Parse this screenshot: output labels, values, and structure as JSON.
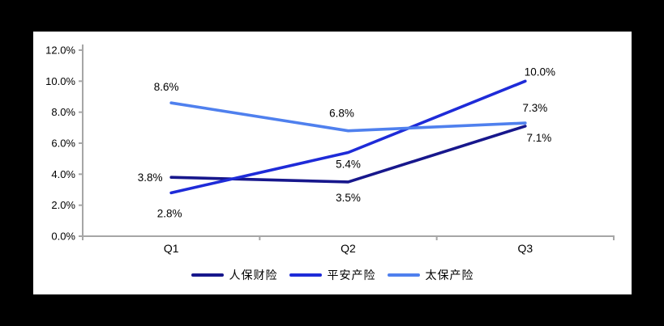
{
  "canvas": {
    "background": "#000000",
    "panel_background": "#FFFFFF"
  },
  "chart_data": {
    "type": "line",
    "title": "",
    "xlabel": "",
    "ylabel": "",
    "categories": [
      "Q1",
      "Q2",
      "Q3"
    ],
    "series": [
      {
        "name": "人保财险",
        "values": [
          3.8,
          3.5,
          7.1
        ],
        "labels": [
          "3.8%",
          "3.5%",
          "7.1%"
        ],
        "color": "#17178C",
        "label_offsets": [
          [
            -26,
            5
          ],
          [
            0,
            24
          ],
          [
            17,
            19
          ]
        ]
      },
      {
        "name": "平安产险",
        "values": [
          2.8,
          5.4,
          10.0
        ],
        "labels": [
          "2.8%",
          "5.4%",
          "10.0%"
        ],
        "color": "#1E2BD8",
        "label_offsets": [
          [
            -2,
            30
          ],
          [
            0,
            19
          ],
          [
            18,
            -7
          ]
        ]
      },
      {
        "name": "太保产险",
        "values": [
          8.6,
          6.8,
          7.3
        ],
        "labels": [
          "8.6%",
          "6.8%",
          "7.3%"
        ],
        "color": "#4F80EE",
        "label_offsets": [
          [
            -6,
            -15
          ],
          [
            -8,
            -17
          ],
          [
            12,
            -14
          ]
        ]
      }
    ],
    "ylim": [
      0,
      12
    ],
    "ytick_step": 2,
    "ytick_labels": [
      "0.0%",
      "2.0%",
      "4.0%",
      "6.0%",
      "8.0%",
      "10.0%",
      "12.0%"
    ],
    "grid": false,
    "legend_position": "bottom",
    "axis_color": "#A6A6A6",
    "text_color": "#000000"
  }
}
